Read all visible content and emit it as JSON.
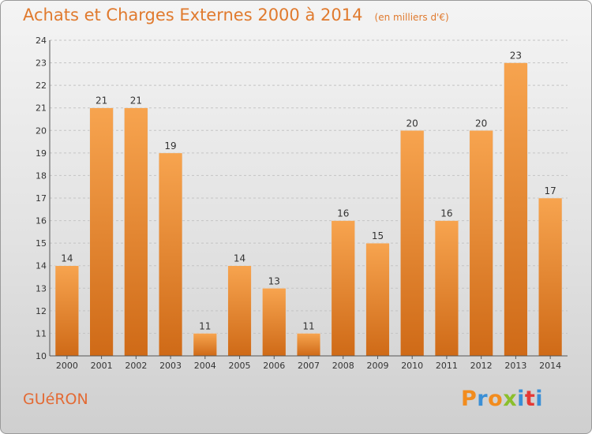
{
  "title": "Achats et Charges Externes 2000 à 2014",
  "unit": "(en milliers d'€)",
  "place": "GUéRON",
  "logo": {
    "letters": [
      "P",
      "r",
      "o",
      "x",
      "i",
      "t",
      "i"
    ],
    "colors": [
      "#f28c1e",
      "#3a8fd6",
      "#f28c1e",
      "#8bbf2c",
      "#3a8fd6",
      "#e53935",
      "#3a8fd6"
    ]
  },
  "colors": {
    "bar_light": "#f7a44f",
    "bar_dark": "#cf6a17",
    "title": "#e07a2e"
  },
  "chart_data": {
    "type": "bar",
    "categories": [
      "2000",
      "2001",
      "2002",
      "2003",
      "2004",
      "2005",
      "2006",
      "2007",
      "2008",
      "2009",
      "2010",
      "2011",
      "2012",
      "2013",
      "2014"
    ],
    "values": [
      14,
      21,
      21,
      19,
      11,
      14,
      13,
      11,
      16,
      15,
      20,
      16,
      20,
      23,
      17
    ],
    "ylim": [
      10,
      24
    ],
    "yticks": [
      10,
      11,
      12,
      13,
      14,
      15,
      16,
      17,
      18,
      19,
      20,
      21,
      22,
      23,
      24
    ],
    "grid": true,
    "xlabel": "",
    "ylabel": ""
  }
}
